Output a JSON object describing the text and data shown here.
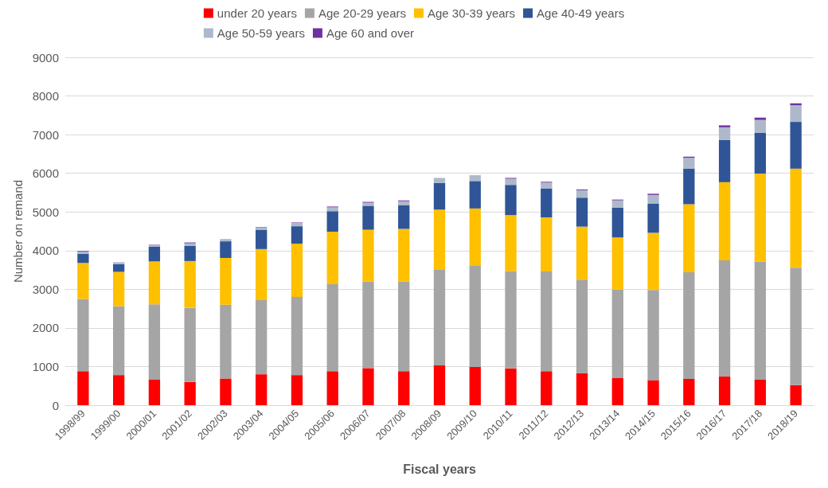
{
  "chart_data": {
    "type": "bar",
    "stacked": true,
    "xlabel": "Fiscal years",
    "ylabel": "Number on remand",
    "categories": [
      "1998/99",
      "1999/00",
      "2000/01",
      "2001/02",
      "2002/03",
      "2003/04",
      "2004/05",
      "2005/06",
      "2006/07",
      "2007/08",
      "2008/09",
      "2009/10",
      "2010/11",
      "2011/12",
      "2012/13",
      "2013/14",
      "2014/15",
      "2015/16",
      "2016/17",
      "2017/18",
      "2018/19"
    ],
    "series": [
      {
        "name": "under 20 years",
        "color": "#ff0000",
        "values": [
          880,
          780,
          660,
          600,
          690,
          800,
          780,
          880,
          960,
          880,
          1030,
          990,
          950,
          880,
          830,
          700,
          650,
          680,
          740,
          660,
          520
        ]
      },
      {
        "name": "Age 20-29 years",
        "color": "#a5a5a5",
        "values": [
          1870,
          1780,
          1950,
          1920,
          1910,
          1920,
          2020,
          2250,
          2240,
          2320,
          2470,
          2630,
          2520,
          2580,
          2420,
          2290,
          2330,
          2760,
          3010,
          3050,
          3040
        ]
      },
      {
        "name": "Age 30-39 years",
        "color": "#ffc000",
        "values": [
          930,
          890,
          1110,
          1210,
          1210,
          1320,
          1380,
          1360,
          1340,
          1360,
          1560,
          1470,
          1450,
          1400,
          1370,
          1350,
          1480,
          1760,
          2020,
          2280,
          2560
        ]
      },
      {
        "name": "Age 40-49 years",
        "color": "#2f5597",
        "values": [
          240,
          200,
          380,
          390,
          430,
          500,
          450,
          530,
          620,
          610,
          690,
          710,
          780,
          750,
          750,
          770,
          750,
          920,
          1090,
          1060,
          1210
        ]
      },
      {
        "name": "Age 50-59 years",
        "color": "#adb9ca",
        "values": [
          50,
          50,
          40,
          70,
          60,
          60,
          90,
          100,
          80,
          110,
          130,
          150,
          160,
          150,
          190,
          190,
          230,
          280,
          330,
          330,
          430
        ]
      },
      {
        "name": "Age 60 and over",
        "color": "#7030a0",
        "values": [
          20,
          null,
          10,
          20,
          null,
          10,
          10,
          20,
          20,
          20,
          null,
          null,
          20,
          20,
          20,
          20,
          30,
          30,
          50,
          60,
          50
        ]
      }
    ],
    "ylim": [
      0,
      9000
    ],
    "yticks": [
      0,
      1000,
      2000,
      3000,
      4000,
      5000,
      6000,
      7000,
      8000,
      9000
    ],
    "grid": "y",
    "legend": "top"
  }
}
